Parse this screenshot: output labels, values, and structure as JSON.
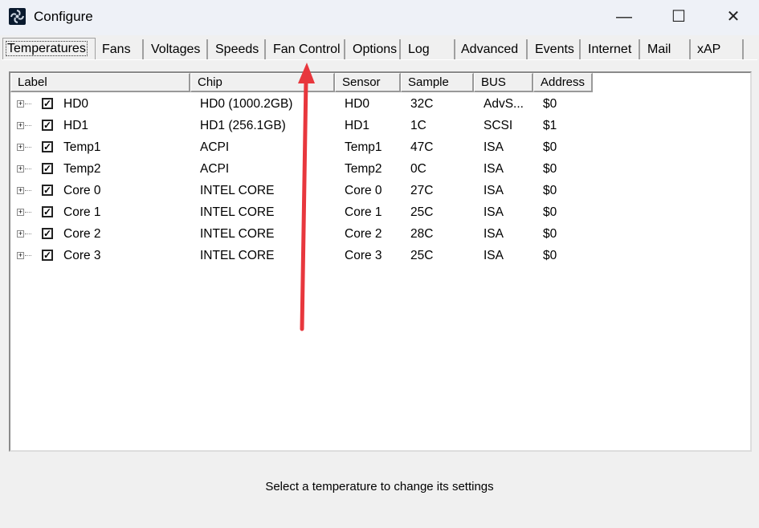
{
  "window": {
    "title": "Configure",
    "minimize": "—",
    "maximize": "☐",
    "close": "✕",
    "icon": "fan-icon"
  },
  "tabs": [
    {
      "label": "Temperatures",
      "active": true
    },
    {
      "label": "Fans"
    },
    {
      "label": "Voltages"
    },
    {
      "label": "Speeds"
    },
    {
      "label": "Fan Control"
    },
    {
      "label": "Options"
    },
    {
      "label": "Log"
    },
    {
      "label": "Advanced"
    },
    {
      "label": "Events"
    },
    {
      "label": "Internet"
    },
    {
      "label": "Mail"
    },
    {
      "label": "xAP"
    }
  ],
  "columns": [
    "Label",
    "Chip",
    "Sensor",
    "Sample",
    "BUS",
    "Address"
  ],
  "rows": [
    {
      "label": "HD0",
      "chip": "HD0 (1000.2GB)",
      "sensor": "HD0",
      "sample": "32C",
      "bus": "AdvS...",
      "address": "$0",
      "checked": true
    },
    {
      "label": "HD1",
      "chip": "HD1 (256.1GB)",
      "sensor": "HD1",
      "sample": "1C",
      "bus": "SCSI",
      "address": "$1",
      "checked": true
    },
    {
      "label": "Temp1",
      "chip": "ACPI",
      "sensor": "Temp1",
      "sample": "47C",
      "bus": "ISA",
      "address": "$0",
      "checked": true
    },
    {
      "label": "Temp2",
      "chip": "ACPI",
      "sensor": "Temp2",
      "sample": "0C",
      "bus": "ISA",
      "address": "$0",
      "checked": true
    },
    {
      "label": "Core 0",
      "chip": "INTEL CORE",
      "sensor": "Core 0",
      "sample": "27C",
      "bus": "ISA",
      "address": "$0",
      "checked": true
    },
    {
      "label": "Core 1",
      "chip": "INTEL CORE",
      "sensor": "Core 1",
      "sample": "25C",
      "bus": "ISA",
      "address": "$0",
      "checked": true
    },
    {
      "label": "Core 2",
      "chip": "INTEL CORE",
      "sensor": "Core 2",
      "sample": "28C",
      "bus": "ISA",
      "address": "$0",
      "checked": true
    },
    {
      "label": "Core 3",
      "chip": "INTEL CORE",
      "sensor": "Core 3",
      "sample": "25C",
      "bus": "ISA",
      "address": "$0",
      "checked": true
    }
  ],
  "status": "Select a temperature to change its settings",
  "annotation": {
    "color": "#e8373d",
    "points_to": "Fan Control"
  }
}
